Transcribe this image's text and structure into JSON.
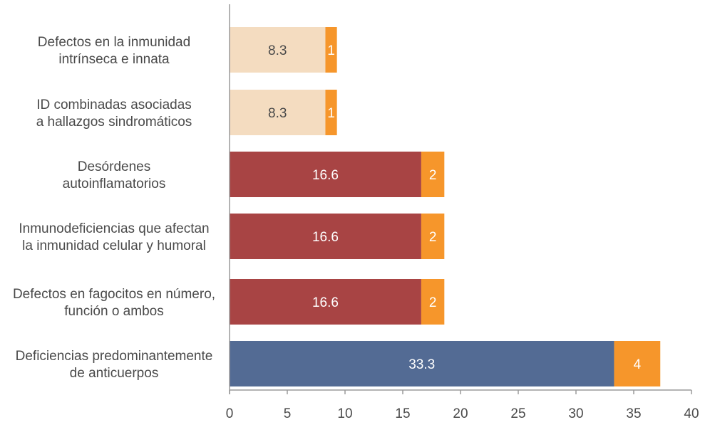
{
  "chart_data": {
    "type": "bar",
    "orientation": "horizontal",
    "stacked": true,
    "categories": [
      [
        "Defectos en la inmunidad",
        "intrínseca e innata"
      ],
      [
        "ID combinadas asociadas",
        "a hallazgos sindromáticos"
      ],
      [
        "Desórdenes",
        "autoinflamatorios"
      ],
      [
        "Inmunodeficiencias que afectan",
        "la inmunidad celular y humoral"
      ],
      [
        "Defectos en fagocitos en número,",
        "función o ambos"
      ],
      [
        "Deficiencias predominantemente",
        "de anticuerpos"
      ]
    ],
    "series": [
      {
        "name": "porcentaje",
        "values": [
          8.3,
          8.3,
          16.6,
          16.6,
          16.6,
          33.3
        ],
        "labels": [
          "8.3",
          "8.3",
          "16.6",
          "16.6",
          "16.6",
          "33.3"
        ]
      },
      {
        "name": "casos",
        "values": [
          1,
          1,
          2,
          2,
          2,
          4
        ],
        "labels": [
          "1",
          "1",
          "2",
          "2",
          "2",
          "4"
        ]
      }
    ],
    "bar_colors": [
      "#f4dcc0",
      "#f4dcc0",
      "#a84444",
      "#a84444",
      "#a84444",
      "#536b94"
    ],
    "bar_label_colors": [
      "#4a4a4a",
      "#4a4a4a",
      "#ffffff",
      "#ffffff",
      "#ffffff",
      "#ffffff"
    ],
    "count_color": "#f6962b",
    "count_label_color": "#ffffff",
    "axis_color": "#9a9a9a",
    "xlim": [
      0,
      40
    ],
    "xticks": [
      0,
      5,
      10,
      15,
      20,
      25,
      30,
      35,
      40
    ],
    "xtick_labels": [
      "0",
      "5",
      "10",
      "15",
      "20",
      "25",
      "30",
      "35",
      "40"
    ],
    "title": "",
    "xlabel": "",
    "ylabel": "",
    "grid": false
  }
}
